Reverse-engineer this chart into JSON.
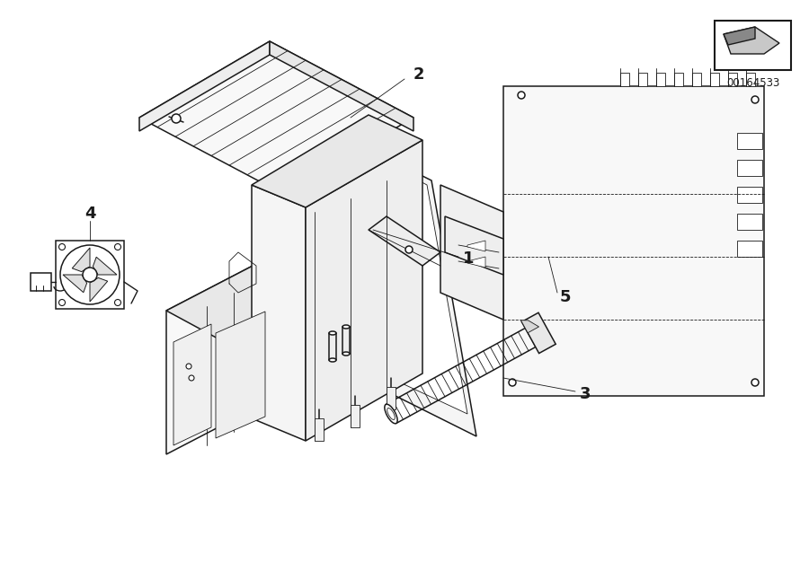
{
  "background_color": "#ffffff",
  "image_number": "00164533",
  "line_color": "#1a1a1a",
  "lw_main": 1.1,
  "lw_thin": 0.6,
  "lw_thick": 1.5
}
